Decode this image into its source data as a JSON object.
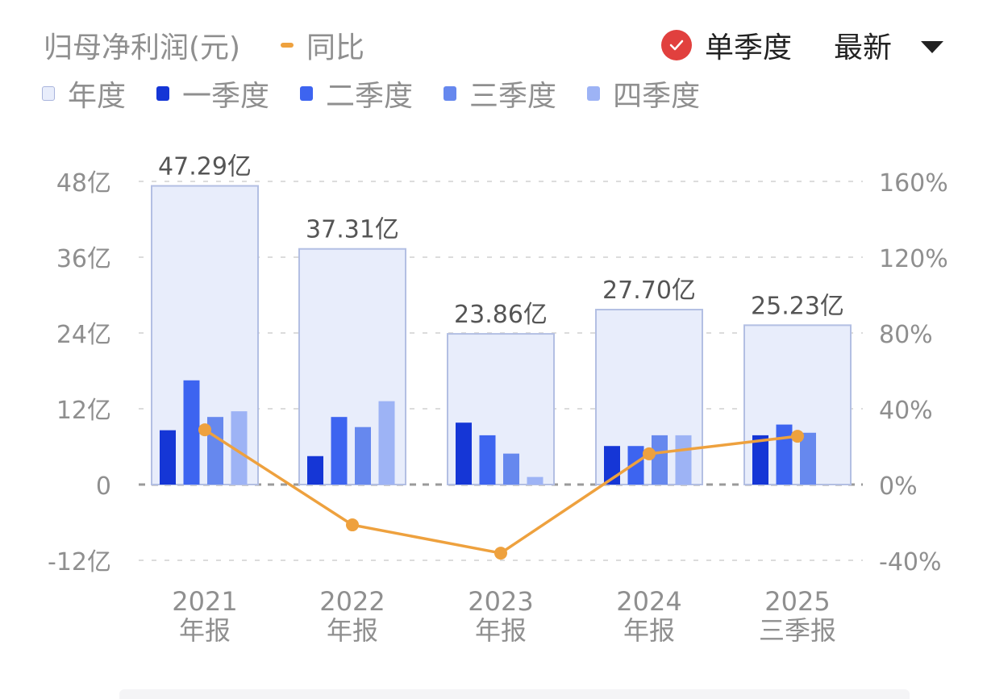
{
  "header": {
    "title": "归母净利润(元)",
    "yoy_legend_label": "同比",
    "single_quarter_label": "单季度",
    "single_quarter_checked": true,
    "sort_label": "最新"
  },
  "legend": [
    {
      "label": "年度",
      "color": "#e8edfb",
      "border": "#a9b4dc"
    },
    {
      "label": "一季度",
      "color": "#1536d6"
    },
    {
      "label": "二季度",
      "color": "#3d64f0"
    },
    {
      "label": "三季度",
      "color": "#6688ee"
    },
    {
      "label": "四季度",
      "color": "#9db3f5"
    }
  ],
  "colors": {
    "annual": "#e8edfb",
    "annual_border": "#b3bfe3",
    "q1": "#1536d6",
    "q2": "#3d64f0",
    "q3": "#6688ee",
    "q4": "#9db3f5",
    "yoy_line": "#eea13e",
    "axis_text": "#8f8f8f",
    "grid": "#d8d8d8"
  },
  "chart_data": {
    "type": "bar",
    "title": "归母净利润(元)",
    "categories": [
      "2021\n年报",
      "2022\n年报",
      "2023\n年报",
      "2024\n年报",
      "2025\n三季报"
    ],
    "category_lines": [
      [
        "2021",
        "年报"
      ],
      [
        "2022",
        "年报"
      ],
      [
        "2023",
        "年报"
      ],
      [
        "2024",
        "年报"
      ],
      [
        "2025",
        "三季报"
      ]
    ],
    "series": [
      {
        "name": "年度",
        "type": "bar",
        "values": [
          47.29,
          37.31,
          23.86,
          27.7,
          25.23
        ],
        "labels": [
          "47.29亿",
          "37.31亿",
          "23.86亿",
          "27.70亿",
          "25.23亿"
        ]
      },
      {
        "name": "一季度",
        "type": "bar",
        "values": [
          8.6,
          4.5,
          9.8,
          6.1,
          7.8
        ]
      },
      {
        "name": "二季度",
        "type": "bar",
        "values": [
          16.5,
          10.7,
          7.8,
          6.1,
          9.5
        ]
      },
      {
        "name": "三季度",
        "type": "bar",
        "values": [
          10.7,
          9.1,
          4.9,
          7.8,
          8.2
        ]
      },
      {
        "name": "四季度",
        "type": "bar",
        "values": [
          11.6,
          13.2,
          1.2,
          7.8,
          null
        ]
      },
      {
        "name": "同比",
        "type": "line",
        "axis": "right",
        "values": [
          28.9,
          -21.3,
          -36.2,
          16.2,
          25.5
        ],
        "unit": "%"
      }
    ],
    "left_axis": {
      "ticks": [
        "48亿",
        "36亿",
        "24亿",
        "12亿",
        "0",
        "-12亿"
      ],
      "values": [
        48,
        36,
        24,
        12,
        0,
        -12
      ],
      "ylim": [
        -12,
        48
      ],
      "unit": "亿"
    },
    "right_axis": {
      "ticks": [
        "160%",
        "120%",
        "80%",
        "40%",
        "0%",
        "-40%"
      ],
      "values": [
        160,
        120,
        80,
        40,
        0,
        -40
      ],
      "ylim": [
        -40,
        160
      ]
    },
    "xlabel": "",
    "ylabel": "",
    "grid": true,
    "legend_position": "top"
  }
}
